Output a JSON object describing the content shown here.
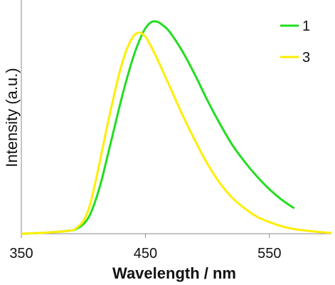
{
  "chart_data": {
    "type": "line",
    "title": "",
    "xlabel": "Wavelength / nm",
    "ylabel": "Intensity (a.u.)",
    "xlim": [
      350,
      600
    ],
    "ylim": [
      0,
      1.07
    ],
    "xticks": [
      350,
      450,
      550
    ],
    "yticks": [],
    "grid": false,
    "legend": "top-right",
    "series": [
      {
        "name": "1",
        "color": "#22dd22",
        "x": [
          350,
          370,
          390,
          395,
          400,
          405,
          410,
          415,
          420,
          425,
          430,
          435,
          440,
          445,
          450,
          455,
          460,
          465,
          470,
          480,
          490,
          500,
          510,
          520,
          530,
          540,
          550,
          560,
          570
        ],
        "y": [
          0.0,
          0.005,
          0.015,
          0.025,
          0.045,
          0.085,
          0.16,
          0.26,
          0.38,
          0.5,
          0.62,
          0.73,
          0.83,
          0.91,
          0.97,
          1.0,
          1.0,
          0.98,
          0.95,
          0.86,
          0.75,
          0.63,
          0.52,
          0.42,
          0.34,
          0.27,
          0.21,
          0.16,
          0.12
        ]
      },
      {
        "name": "3",
        "color": "#ffee00",
        "x": [
          350,
          370,
          390,
          395,
          400,
          405,
          410,
          415,
          420,
          425,
          430,
          435,
          440,
          445,
          450,
          455,
          460,
          470,
          480,
          490,
          500,
          510,
          520,
          530,
          540,
          550,
          560,
          570,
          580,
          590,
          600
        ],
        "y": [
          0.0,
          0.005,
          0.015,
          0.03,
          0.06,
          0.13,
          0.25,
          0.39,
          0.53,
          0.66,
          0.78,
          0.87,
          0.93,
          0.95,
          0.93,
          0.88,
          0.82,
          0.69,
          0.56,
          0.44,
          0.33,
          0.24,
          0.17,
          0.12,
          0.08,
          0.055,
          0.035,
          0.022,
          0.014,
          0.008,
          0.004
        ]
      }
    ]
  }
}
